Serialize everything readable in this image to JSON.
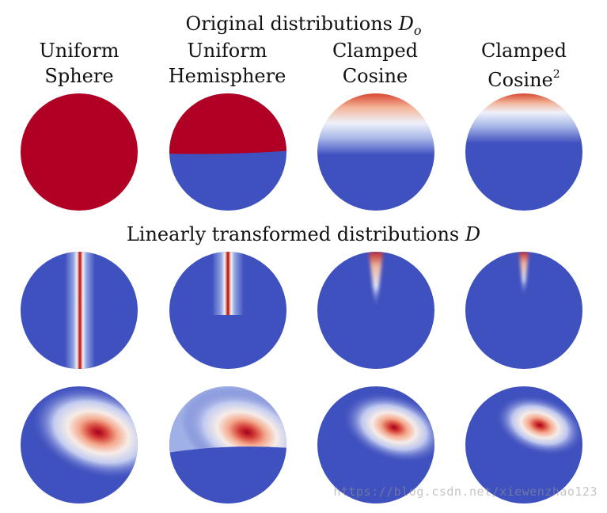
{
  "titles": {
    "original_text": "Original distributions ",
    "original_symbol": "D",
    "original_subscript": "o",
    "linear_text": "Linearly transformed distributions ",
    "linear_symbol": "D"
  },
  "columns": [
    {
      "line1": "Uniform",
      "line2": "Sphere",
      "sup": ""
    },
    {
      "line1": "Uniform",
      "line2": "Hemisphere",
      "sup": ""
    },
    {
      "line1": "Clamped",
      "line2": "Cosine",
      "sup": ""
    },
    {
      "line1": "Clamped",
      "line2": "Cosine",
      "sup": "2"
    }
  ],
  "colors": {
    "red": "#b00024",
    "blue": "#3f50bf",
    "white": "#eef1fb"
  },
  "watermark": "https://blog.csdn.net/xiewenzhao123"
}
